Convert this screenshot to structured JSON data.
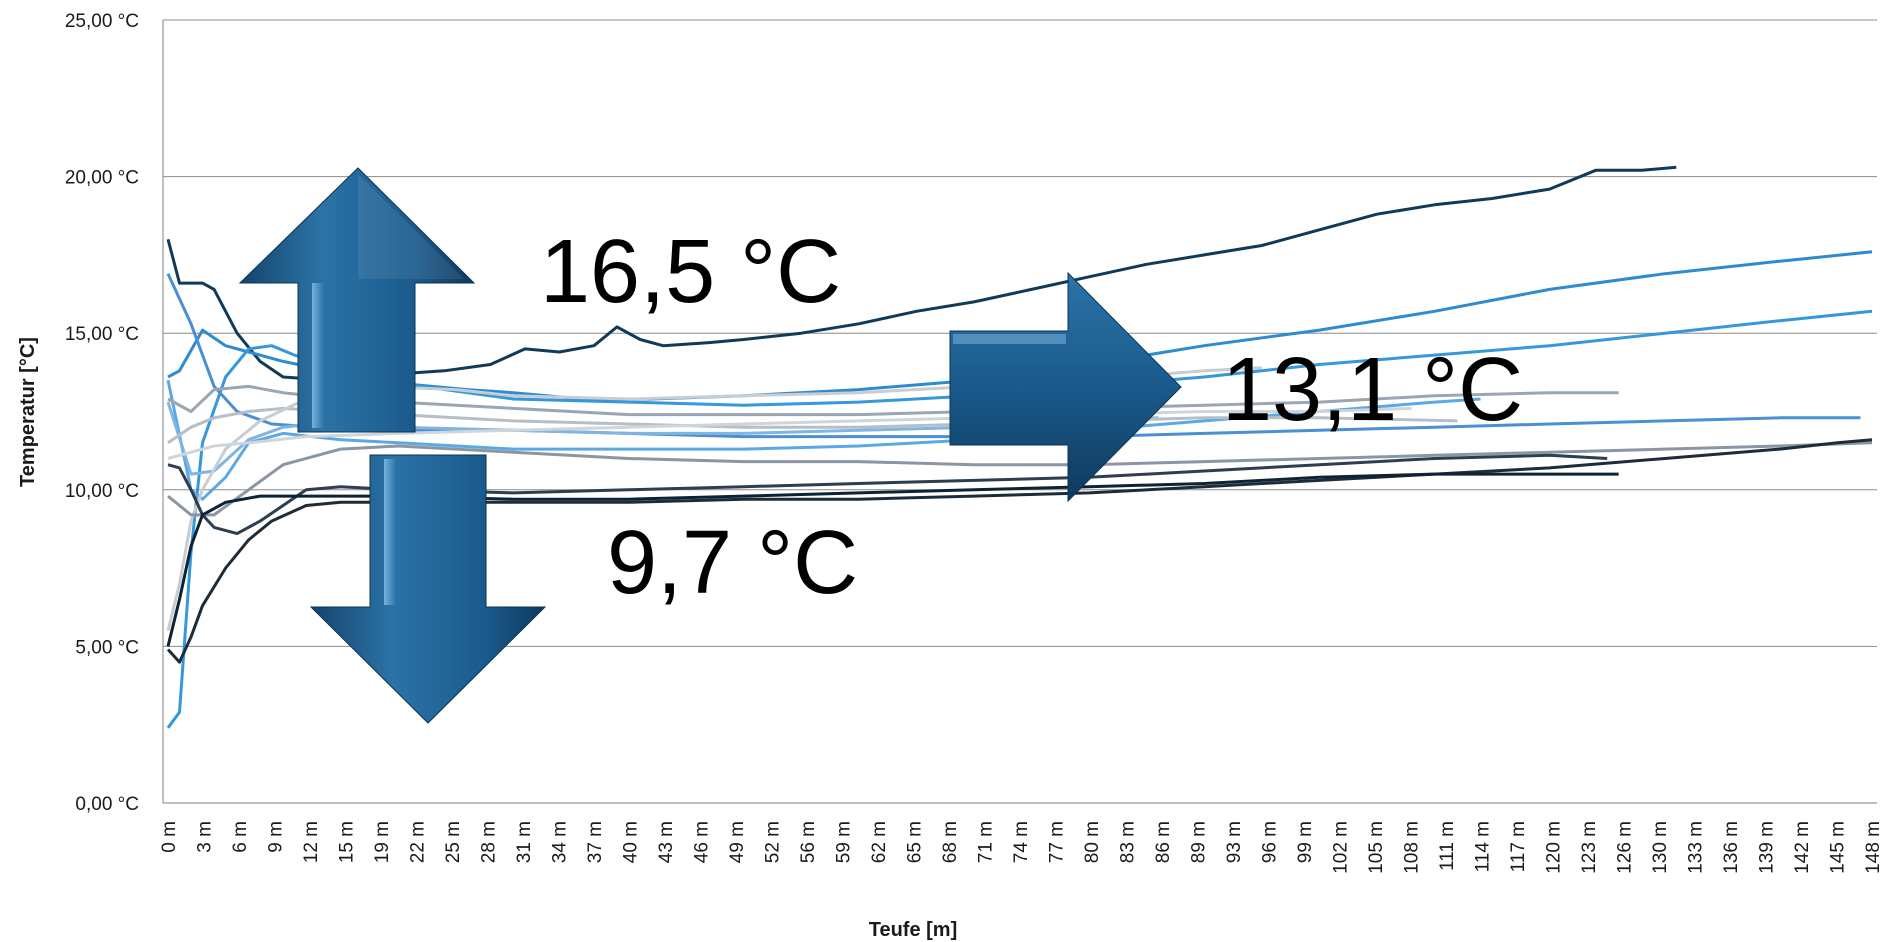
{
  "chart_data": {
    "type": "line",
    "xlabel": "Teufe [m]",
    "ylabel": "Temperatur [°C]",
    "ylim": [
      0,
      25
    ],
    "yticks": [
      "0,00 °C",
      "5,00 °C",
      "10,00 °C",
      "15,00 °C",
      "20,00 °C",
      "25,00 °C"
    ],
    "xlim": [
      0,
      148
    ],
    "xticks": [
      "0 m",
      "3 m",
      "6 m",
      "9 m",
      "12 m",
      "15 m",
      "19 m",
      "22 m",
      "25 m",
      "28 m",
      "31 m",
      "34 m",
      "37 m",
      "40 m",
      "43 m",
      "46 m",
      "49 m",
      "52 m",
      "56 m",
      "59 m",
      "62 m",
      "65 m",
      "68 m",
      "71 m",
      "74 m",
      "77 m",
      "80 m",
      "83 m",
      "86 m",
      "89 m",
      "93 m",
      "96 m",
      "99 m",
      "102 m",
      "105 m",
      "108 m",
      "111 m",
      "114 m",
      "117 m",
      "120 m",
      "123 m",
      "126 m",
      "130 m",
      "133 m",
      "136 m",
      "139 m",
      "142 m",
      "145 m",
      "148 m"
    ],
    "grid": true,
    "legend": "none",
    "annotations": [
      {
        "text": "16,5 °C",
        "arrow": "up"
      },
      {
        "text": "9,7 °C",
        "arrow": "down"
      },
      {
        "text": "13,1 °C",
        "arrow": "right"
      }
    ],
    "series": [
      {
        "color": "#0f3a5a",
        "points": [
          [
            0,
            18
          ],
          [
            1,
            16.6
          ],
          [
            3,
            16.6
          ],
          [
            4,
            16.4
          ],
          [
            6,
            15
          ],
          [
            8,
            14.1
          ],
          [
            10,
            13.6
          ],
          [
            14,
            13.5
          ],
          [
            20,
            13.7
          ],
          [
            24,
            13.8
          ],
          [
            28,
            14
          ],
          [
            31,
            14.5
          ],
          [
            34,
            14.4
          ],
          [
            37,
            14.6
          ],
          [
            39,
            15.2
          ],
          [
            41,
            14.8
          ],
          [
            43,
            14.6
          ],
          [
            47,
            14.7
          ],
          [
            50,
            14.8
          ],
          [
            55,
            15
          ],
          [
            60,
            15.3
          ],
          [
            65,
            15.7
          ],
          [
            70,
            16
          ],
          [
            75,
            16.4
          ],
          [
            80,
            16.8
          ],
          [
            85,
            17.2
          ],
          [
            90,
            17.5
          ],
          [
            95,
            17.8
          ],
          [
            100,
            18.3
          ],
          [
            105,
            18.8
          ],
          [
            110,
            19.1
          ],
          [
            115,
            19.3
          ],
          [
            120,
            19.6
          ],
          [
            124,
            20.2
          ],
          [
            128,
            20.2
          ],
          [
            131,
            20.3
          ]
        ]
      },
      {
        "color": "#2e8bd0",
        "points": [
          [
            0,
            13.6
          ],
          [
            1,
            13.8
          ],
          [
            3,
            15.1
          ],
          [
            5,
            14.6
          ],
          [
            7,
            14.4
          ],
          [
            10,
            14.1
          ],
          [
            14,
            13.8
          ],
          [
            20,
            13.4
          ],
          [
            26,
            13.2
          ],
          [
            30,
            13.1
          ],
          [
            36,
            12.9
          ],
          [
            42,
            12.9
          ],
          [
            50,
            13
          ],
          [
            60,
            13.2
          ],
          [
            70,
            13.5
          ],
          [
            80,
            14
          ],
          [
            90,
            14.6
          ],
          [
            100,
            15.1
          ],
          [
            110,
            15.7
          ],
          [
            120,
            16.4
          ],
          [
            130,
            16.9
          ],
          [
            140,
            17.3
          ],
          [
            148,
            17.6
          ]
        ]
      },
      {
        "color": "#3498db",
        "points": [
          [
            0,
            2.4
          ],
          [
            1,
            2.9
          ],
          [
            2,
            8
          ],
          [
            3,
            11.5
          ],
          [
            5,
            13.6
          ],
          [
            7,
            14.5
          ],
          [
            9,
            14.6
          ],
          [
            11,
            14.3
          ],
          [
            15,
            13.8
          ],
          [
            20,
            13.4
          ],
          [
            30,
            12.9
          ],
          [
            40,
            12.8
          ],
          [
            50,
            12.7
          ],
          [
            60,
            12.8
          ],
          [
            70,
            13
          ],
          [
            80,
            13.3
          ],
          [
            90,
            13.6
          ],
          [
            100,
            14
          ],
          [
            110,
            14.3
          ],
          [
            120,
            14.6
          ],
          [
            130,
            15
          ],
          [
            140,
            15.4
          ],
          [
            148,
            15.7
          ]
        ]
      },
      {
        "color": "#4a8fd4",
        "points": [
          [
            0,
            16.9
          ],
          [
            2,
            15.3
          ],
          [
            4,
            13.3
          ],
          [
            6,
            12.5
          ],
          [
            9,
            12.1
          ],
          [
            13,
            12
          ],
          [
            20,
            11.9
          ],
          [
            30,
            11.9
          ],
          [
            40,
            11.8
          ],
          [
            50,
            11.7
          ],
          [
            60,
            11.7
          ],
          [
            70,
            11.7
          ],
          [
            80,
            11.7
          ],
          [
            90,
            11.8
          ],
          [
            100,
            11.9
          ],
          [
            110,
            12
          ],
          [
            120,
            12.1
          ],
          [
            130,
            12.2
          ],
          [
            140,
            12.3
          ],
          [
            147,
            12.3
          ]
        ]
      },
      {
        "color": "#5aa9e6",
        "points": [
          [
            0,
            13.5
          ],
          [
            2,
            10
          ],
          [
            3,
            9.7
          ],
          [
            5,
            10.4
          ],
          [
            7,
            11.5
          ],
          [
            10,
            11.8
          ],
          [
            15,
            11.6
          ],
          [
            20,
            11.5
          ],
          [
            30,
            11.3
          ],
          [
            40,
            11.3
          ],
          [
            50,
            11.3
          ],
          [
            60,
            11.4
          ],
          [
            70,
            11.6
          ],
          [
            80,
            11.9
          ],
          [
            90,
            12.2
          ],
          [
            100,
            12.5
          ],
          [
            110,
            12.8
          ],
          [
            114,
            12.9
          ]
        ]
      },
      {
        "color": "#7fb5e0",
        "points": [
          [
            0,
            12.8
          ],
          [
            2,
            10.5
          ],
          [
            4,
            10.6
          ],
          [
            7,
            11.6
          ],
          [
            10,
            12
          ],
          [
            15,
            12.2
          ],
          [
            20,
            12
          ],
          [
            30,
            11.9
          ],
          [
            40,
            11.8
          ],
          [
            50,
            11.8
          ],
          [
            60,
            11.9
          ],
          [
            70,
            12
          ],
          [
            80,
            12.2
          ],
          [
            86,
            12.3
          ]
        ]
      },
      {
        "color": "#9aa6b4",
        "points": [
          [
            0,
            12.9
          ],
          [
            2,
            12.5
          ],
          [
            4,
            13.2
          ],
          [
            7,
            13.3
          ],
          [
            10,
            13.1
          ],
          [
            15,
            12.9
          ],
          [
            20,
            12.8
          ],
          [
            30,
            12.6
          ],
          [
            40,
            12.4
          ],
          [
            50,
            12.4
          ],
          [
            60,
            12.4
          ],
          [
            70,
            12.5
          ],
          [
            80,
            12.6
          ],
          [
            90,
            12.7
          ],
          [
            100,
            12.8
          ],
          [
            110,
            13
          ],
          [
            120,
            13.1
          ],
          [
            126,
            13.1
          ]
        ]
      },
      {
        "color": "#b6bec8",
        "points": [
          [
            0,
            11.5
          ],
          [
            2,
            12
          ],
          [
            4,
            12.3
          ],
          [
            7,
            12.5
          ],
          [
            10,
            12.6
          ],
          [
            15,
            12.5
          ],
          [
            20,
            12.4
          ],
          [
            30,
            12.2
          ],
          [
            40,
            12.1
          ],
          [
            50,
            12
          ],
          [
            60,
            12
          ],
          [
            70,
            12.1
          ],
          [
            80,
            12.2
          ],
          [
            90,
            12.3
          ],
          [
            100,
            12.3
          ],
          [
            112,
            12.2
          ]
        ]
      },
      {
        "color": "#c8cdd3",
        "points": [
          [
            0,
            5.5
          ],
          [
            1,
            7
          ],
          [
            2,
            9
          ],
          [
            3,
            10
          ],
          [
            5,
            11.3
          ],
          [
            8,
            12.2
          ],
          [
            12,
            12.9
          ],
          [
            18,
            13.3
          ],
          [
            25,
            13.2
          ],
          [
            30,
            13
          ],
          [
            40,
            12.9
          ],
          [
            50,
            13
          ],
          [
            60,
            13.1
          ],
          [
            70,
            13.3
          ],
          [
            80,
            13.5
          ],
          [
            90,
            13.8
          ],
          [
            95,
            13.9
          ]
        ]
      },
      {
        "color": "#d0d5da",
        "points": [
          [
            0,
            11
          ],
          [
            2,
            11.2
          ],
          [
            4,
            11.4
          ],
          [
            7,
            11.5
          ],
          [
            12,
            11.7
          ],
          [
            20,
            11.8
          ],
          [
            30,
            11.9
          ],
          [
            40,
            12
          ],
          [
            50,
            12.1
          ],
          [
            60,
            12.2
          ],
          [
            70,
            12.3
          ],
          [
            80,
            12.4
          ],
          [
            90,
            12.5
          ],
          [
            100,
            12.5
          ],
          [
            108,
            12.6
          ]
        ]
      },
      {
        "color": "#8b96a3",
        "points": [
          [
            0,
            9.8
          ],
          [
            2,
            9.2
          ],
          [
            4,
            9.2
          ],
          [
            7,
            10
          ],
          [
            10,
            10.8
          ],
          [
            15,
            11.3
          ],
          [
            20,
            11.4
          ],
          [
            30,
            11.2
          ],
          [
            40,
            11
          ],
          [
            50,
            10.9
          ],
          [
            60,
            10.9
          ],
          [
            70,
            10.8
          ],
          [
            80,
            10.8
          ],
          [
            90,
            10.9
          ],
          [
            100,
            11
          ],
          [
            110,
            11.1
          ],
          [
            120,
            11.2
          ],
          [
            130,
            11.3
          ],
          [
            140,
            11.4
          ],
          [
            148,
            11.5
          ]
        ]
      },
      {
        "color": "#2c3e50",
        "points": [
          [
            0,
            10.8
          ],
          [
            1,
            10.7
          ],
          [
            2,
            10
          ],
          [
            3,
            9.2
          ],
          [
            4,
            8.8
          ],
          [
            6,
            8.6
          ],
          [
            8,
            9
          ],
          [
            10,
            9.5
          ],
          [
            12,
            10
          ],
          [
            15,
            10.1
          ],
          [
            20,
            10
          ],
          [
            30,
            9.9
          ],
          [
            40,
            10
          ],
          [
            50,
            10.1
          ],
          [
            60,
            10.2
          ],
          [
            70,
            10.3
          ],
          [
            80,
            10.4
          ],
          [
            90,
            10.6
          ],
          [
            100,
            10.8
          ],
          [
            110,
            11
          ],
          [
            120,
            11.1
          ],
          [
            125,
            11
          ]
        ]
      },
      {
        "color": "#1e2b38",
        "points": [
          [
            0,
            4.9
          ],
          [
            1,
            4.5
          ],
          [
            2,
            5.3
          ],
          [
            3,
            6.3
          ],
          [
            5,
            7.5
          ],
          [
            7,
            8.4
          ],
          [
            9,
            9
          ],
          [
            12,
            9.5
          ],
          [
            15,
            9.6
          ],
          [
            20,
            9.6
          ],
          [
            30,
            9.6
          ],
          [
            40,
            9.6
          ],
          [
            50,
            9.7
          ],
          [
            60,
            9.7
          ],
          [
            70,
            9.8
          ],
          [
            80,
            9.9
          ],
          [
            90,
            10.1
          ],
          [
            100,
            10.3
          ],
          [
            110,
            10.5
          ],
          [
            120,
            10.7
          ],
          [
            130,
            11
          ],
          [
            140,
            11.3
          ],
          [
            145,
            11.5
          ],
          [
            148,
            11.6
          ]
        ]
      },
      {
        "color": "#0d2233",
        "points": [
          [
            0,
            5
          ],
          [
            1,
            6.5
          ],
          [
            2,
            8.2
          ],
          [
            3,
            9.2
          ],
          [
            5,
            9.6
          ],
          [
            8,
            9.8
          ],
          [
            12,
            9.8
          ],
          [
            20,
            9.8
          ],
          [
            30,
            9.7
          ],
          [
            40,
            9.7
          ],
          [
            50,
            9.8
          ],
          [
            60,
            9.9
          ],
          [
            70,
            10
          ],
          [
            80,
            10.1
          ],
          [
            90,
            10.2
          ],
          [
            100,
            10.4
          ],
          [
            110,
            10.5
          ],
          [
            120,
            10.5
          ],
          [
            126,
            10.5
          ]
        ]
      }
    ]
  }
}
